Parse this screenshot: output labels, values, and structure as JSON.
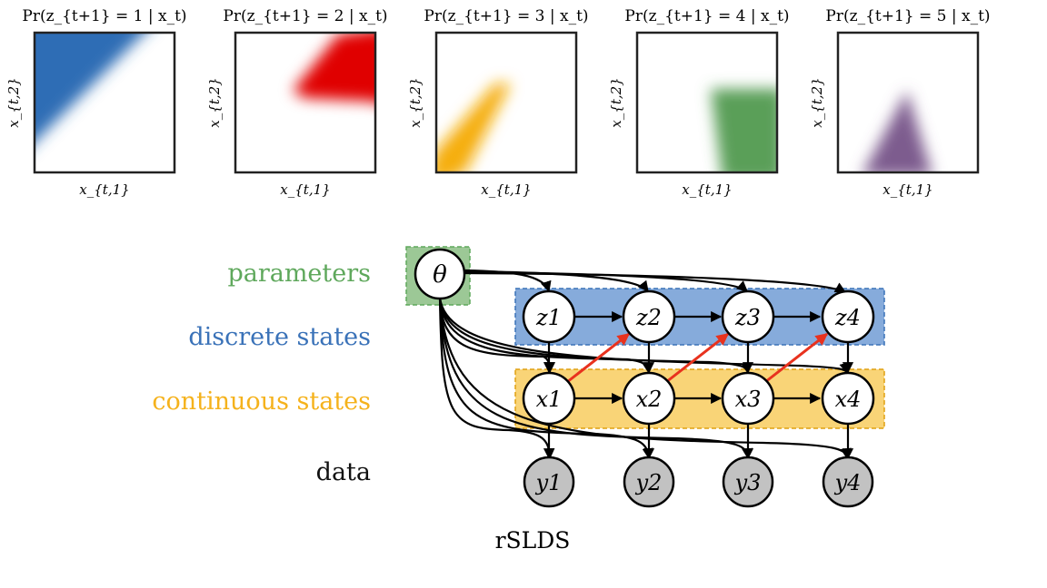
{
  "panels": [
    {
      "prob_label": "Pr(z_{t+1} = 1 | x_t)",
      "color": "#2f6db5",
      "xlabel": "x_{t,1}",
      "ylabel": "x_{t,2}"
    },
    {
      "prob_label": "Pr(z_{t+1} = 2 | x_t)",
      "color": "#e00000",
      "xlabel": "x_{t,1}",
      "ylabel": "x_{t,2}"
    },
    {
      "prob_label": "Pr(z_{t+1} = 3 | x_t)",
      "color": "#f5ae0b",
      "xlabel": "x_{t,1}",
      "ylabel": "x_{t,2}"
    },
    {
      "prob_label": "Pr(z_{t+1} = 4 | x_t)",
      "color": "#5a9f59",
      "xlabel": "x_{t,1}",
      "ylabel": "x_{t,2}"
    },
    {
      "prob_label": "Pr(z_{t+1} = 5 | x_t)",
      "color": "#7d5b8e",
      "xlabel": "x_{t,1}",
      "ylabel": "x_{t,2}"
    }
  ],
  "graph": {
    "row_labels": {
      "parameters": "parameters",
      "discrete": "discrete states",
      "continuous": "continuous states",
      "data": "data"
    },
    "theta": "θ",
    "z_nodes": [
      "z1",
      "z2",
      "z3",
      "z4"
    ],
    "x_nodes": [
      "x1",
      "x2",
      "x3",
      "x4"
    ],
    "y_nodes": [
      "y1",
      "y2",
      "y3",
      "y4"
    ],
    "caption": "rSLDS",
    "colors": {
      "parameters": "#5fa85c",
      "discrete": "#3a72b8",
      "continuous": "#f5b21c",
      "data": "#111111",
      "params_box": "#9cc896",
      "discrete_box": "#86abdb",
      "continuous_box": "#f9d477",
      "observed_node": "#c2c2c2",
      "red_arrow": "#e8321e"
    }
  }
}
